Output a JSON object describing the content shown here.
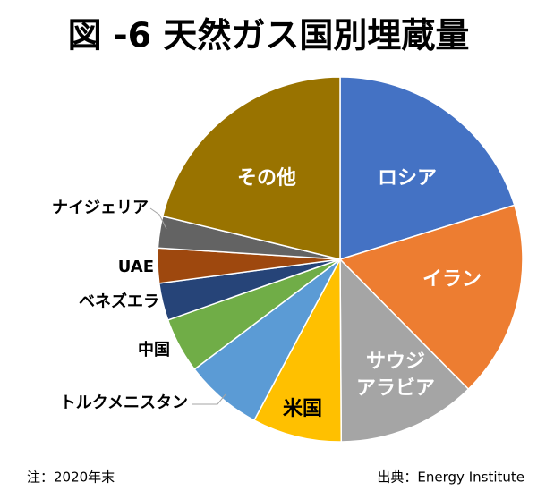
{
  "chart_data": {
    "type": "pie",
    "title": "図 -6 天然ガス国別埋蔵量",
    "categories": [
      "ロシア",
      "イラン",
      "サウジ\nアラビア",
      "米国",
      "トルクメニスタン",
      "中国",
      "ベネズエラ",
      "UAE",
      "ナイジェリア",
      "その他"
    ],
    "values": [
      20.2,
      17.4,
      12.3,
      7.9,
      6.9,
      4.9,
      3.3,
      3.1,
      2.8,
      21.2
    ],
    "colors": [
      "#4472c4",
      "#ed7d31",
      "#a5a5a5",
      "#ffc000",
      "#5b9bd5",
      "#70ad47",
      "#264478",
      "#9e480e",
      "#636363",
      "#997300"
    ],
    "note": "注：2020年末",
    "source": "出典：Energy Institute"
  }
}
